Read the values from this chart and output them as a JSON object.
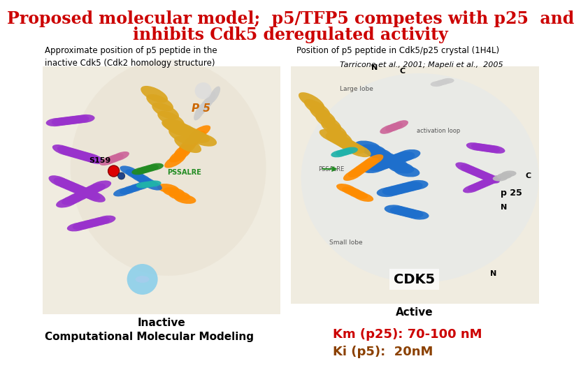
{
  "title_line1": "Proposed molecular model;  p5/TFP5 competes with p25  and",
  "title_line2": "inhibits Cdk5 deregulated activity",
  "title_color": "#cc0000",
  "title_fontsize": 17,
  "left_header": "Approximate position of p5 peptide in the\ninactive Cdk5 (Cdk2 homology structure)",
  "right_header": "Position of p5 peptide in Cdk5/p25 crystal (1H4L)",
  "reference": "Tarricone et al., 2001; Mapeli et al.,  2005",
  "left_caption": "Inactive",
  "left_caption2": "Computational Molecular Modeling",
  "right_caption": "Active",
  "km_text": "Km (p25): 70-100 nM",
  "ki_text": "Ki (p5):  20nM",
  "km_color": "#cc0000",
  "ki_color": "#8b4000",
  "bg_color": "#ffffff",
  "left_panel_bg": "#f5f0e8",
  "right_panel_bg": "#f5f0e8",
  "p5_color": "#cc6600",
  "pssalre_color": "#228B22",
  "s159_color": "#cc0000",
  "cdk5_text_color": "#000000",
  "purple": "#9932CC",
  "blue": "#1E6FCC",
  "gold": "#DAA520",
  "orange": "#FF8C00",
  "green": "#228B22",
  "teal": "#20B2AA",
  "lightblue": "#87CEEB",
  "gray": "#aaaaaa",
  "pink": "#CC6699"
}
